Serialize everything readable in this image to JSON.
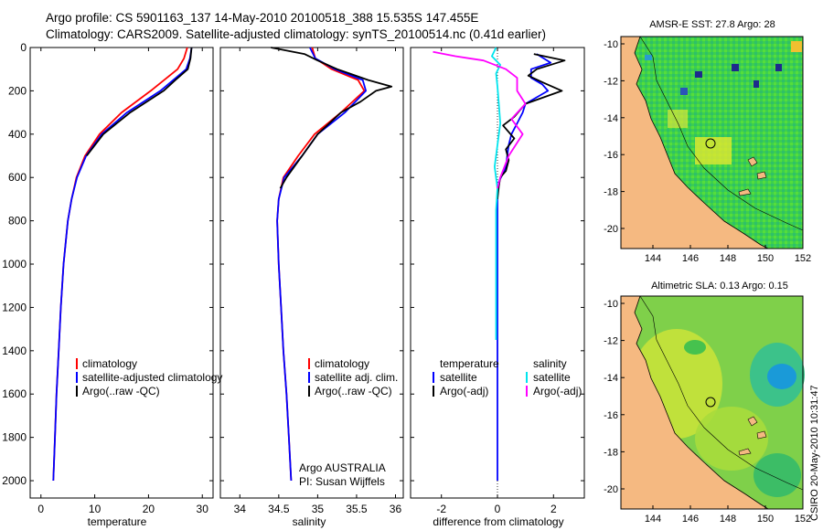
{
  "header": {
    "line1": "Argo profile: CS 5901163_137 14-May-2010 20100518_388 15.535S 147.455E",
    "line2": "Climatology: CARS2009. Satellite-adjusted climatology: synTS_20100514.nc (0.41d earlier)"
  },
  "colors": {
    "clim": "#ff0000",
    "sat": "#0000ff",
    "argo": "#000000",
    "sat_s": "#00e5ee",
    "argo_s": "#ff00ff",
    "land": "#f5b981"
  },
  "chart_data": [
    {
      "id": "temperature",
      "type": "line",
      "xlabel": "temperature",
      "ylabel": "",
      "xlim": [
        -2,
        32
      ],
      "ylim": [
        2080,
        0
      ],
      "xticks": [
        0,
        10,
        20,
        30
      ],
      "yticks": [
        0,
        200,
        400,
        600,
        800,
        1000,
        1200,
        1400,
        1600,
        1800,
        2000
      ],
      "legend": [
        "climatology",
        "satellite-adjusted climatology",
        "Argo(..raw -QC)"
      ],
      "series": [
        {
          "name": "climatology",
          "key": "clim",
          "depth": [
            0,
            50,
            100,
            200,
            300,
            400,
            500,
            600,
            700,
            800,
            1000,
            1200,
            1400,
            1600,
            1800,
            2000
          ],
          "values": [
            27.2,
            26.6,
            25.4,
            20.4,
            15.0,
            10.9,
            8.2,
            6.6,
            5.7,
            5.0,
            4.2,
            3.7,
            3.3,
            2.9,
            2.6,
            2.3
          ]
        },
        {
          "name": "satellite-adjusted climatology",
          "key": "sat",
          "depth": [
            0,
            50,
            100,
            200,
            300,
            400,
            500,
            600,
            700,
            800,
            1000,
            1200,
            1400,
            1600,
            1800,
            2000
          ],
          "values": [
            28.0,
            27.7,
            27.0,
            22.2,
            16.0,
            11.3,
            8.4,
            6.7,
            5.7,
            5.0,
            4.2,
            3.7,
            3.3,
            2.9,
            2.6,
            2.3
          ]
        },
        {
          "name": "Argo(..raw -QC)",
          "key": "argo",
          "depth": [
            0,
            50,
            100,
            150,
            200,
            300,
            400,
            500
          ],
          "values": [
            28.0,
            27.8,
            27.3,
            25.0,
            22.8,
            16.6,
            11.6,
            8.5
          ]
        }
      ]
    },
    {
      "id": "salinity",
      "type": "line",
      "xlabel": "salinity",
      "ylabel": "",
      "xlim": [
        33.75,
        36.1
      ],
      "ylim": [
        2080,
        0
      ],
      "xticks": [
        34,
        34.5,
        35,
        35.5,
        36
      ],
      "xticklabels": [
        "34",
        "34.5",
        "35",
        "35.5",
        "36"
      ],
      "yticks": [
        0,
        200,
        400,
        600,
        800,
        1000,
        1200,
        1400,
        1600,
        1800,
        2000
      ],
      "legend": [
        "climatology",
        "satellite adj. clim.",
        "Argo(..raw -QC)"
      ],
      "annotation": [
        "Argo AUSTRALIA",
        "PI: Susan Wijffels"
      ],
      "series": [
        {
          "name": "climatology",
          "key": "clim",
          "depth": [
            0,
            50,
            100,
            150,
            200,
            300,
            400,
            500,
            600,
            700,
            800,
            1000,
            1200,
            1400,
            1600,
            1800,
            2000
          ],
          "values": [
            34.93,
            34.97,
            35.18,
            35.52,
            35.6,
            35.3,
            34.96,
            34.75,
            34.56,
            34.5,
            34.48,
            34.5,
            34.53,
            34.56,
            34.6,
            34.63,
            34.66
          ]
        },
        {
          "name": "satellite adj. clim.",
          "key": "sat",
          "depth": [
            0,
            50,
            100,
            150,
            200,
            300,
            400,
            500,
            600,
            700,
            800,
            1000,
            1200,
            1400,
            1600,
            1800,
            2000
          ],
          "values": [
            34.9,
            34.97,
            35.22,
            35.58,
            35.62,
            35.35,
            35.0,
            34.8,
            34.57,
            34.5,
            34.48,
            34.5,
            34.53,
            34.56,
            34.6,
            34.63,
            34.66
          ]
        },
        {
          "name": "Argo(..raw -QC)",
          "key": "argo",
          "depth": [
            0,
            30,
            60,
            100,
            150,
            180,
            200,
            250,
            300,
            400,
            500,
            600,
            650
          ],
          "values": [
            34.4,
            34.83,
            35.0,
            35.25,
            35.65,
            35.95,
            35.75,
            35.55,
            35.3,
            35.0,
            34.8,
            34.6,
            34.52
          ]
        }
      ]
    },
    {
      "id": "difference",
      "type": "line",
      "xlabel": "difference from climatology",
      "xlim": [
        -3.1,
        3.1
      ],
      "ylim": [
        2080,
        0
      ],
      "xticks": [
        -2,
        0,
        2
      ],
      "yticks": [
        0,
        200,
        400,
        600,
        800,
        1000,
        1200,
        1400,
        1600,
        1800,
        2000
      ],
      "legend_temperature": [
        "temperature",
        "satellite",
        "Argo(-adj)"
      ],
      "legend_salinity": [
        "salinity",
        "satellite",
        "Argo(-adj)"
      ],
      "series": [
        {
          "name": "temperature satellite",
          "key": "sat",
          "depth": [
            30,
            70,
            100,
            140,
            170,
            200,
            260,
            300,
            350,
            400,
            450,
            500,
            550,
            580,
            620,
            680,
            800,
            900,
            1000,
            1100,
            1200,
            1300,
            1400,
            1500,
            1600,
            1700,
            1800,
            1900,
            2000
          ],
          "values": [
            1.4,
            1.9,
            1.2,
            1.2,
            1.6,
            1.8,
            1.0,
            0.9,
            0.7,
            0.5,
            0.4,
            0.35,
            0.3,
            0.2,
            0.05,
            0,
            0,
            0,
            0,
            0,
            0,
            0,
            0,
            0,
            0,
            0,
            0,
            0,
            0
          ]
        },
        {
          "name": "temperature Argo(-adj)",
          "key": "argo",
          "depth": [
            30,
            60,
            100,
            130,
            160,
            200,
            260,
            320,
            360,
            420,
            470,
            520,
            570,
            600,
            640,
            700
          ],
          "values": [
            1.3,
            2.4,
            1.4,
            1.1,
            1.6,
            2.3,
            1.0,
            0.6,
            0.2,
            0.6,
            0.3,
            0.4,
            0.3,
            0.1,
            0.05,
            0
          ]
        },
        {
          "name": "salinity satellite",
          "key": "sat_s",
          "depth": [
            0,
            40,
            80,
            120,
            180,
            260,
            350,
            450,
            550,
            650,
            750,
            850,
            1000,
            1200,
            1350
          ],
          "values": [
            -0.05,
            -0.2,
            0.1,
            -0.05,
            0.0,
            0.05,
            0.1,
            0.0,
            -0.1,
            0.0,
            -0.05,
            -0.05,
            -0.05,
            -0.05,
            -0.05
          ]
        },
        {
          "name": "salinity Argo(-adj)",
          "key": "argo_s",
          "depth": [
            20,
            40,
            60,
            100,
            140,
            200,
            260,
            330,
            400,
            500,
            600,
            650
          ],
          "values": [
            -2.3,
            -1.5,
            -0.5,
            0.3,
            0.7,
            0.7,
            1.0,
            0.5,
            0.9,
            0.4,
            0.1,
            0.0
          ]
        }
      ]
    }
  ],
  "maps": {
    "sst": {
      "title": "AMSR-E SST: 27.8 Argo: 28"
    },
    "sla": {
      "title": "Altimetric SLA: 0.13 Argo: 0.15"
    },
    "lat_ticks": [
      "-10",
      "-12",
      "-14",
      "-16",
      "-18",
      "-20"
    ],
    "lon_ticks": [
      "144",
      "146",
      "148",
      "150",
      "152"
    ]
  },
  "footer": {
    "credit": "CSIRO 20-May-2010 10:31:47"
  }
}
